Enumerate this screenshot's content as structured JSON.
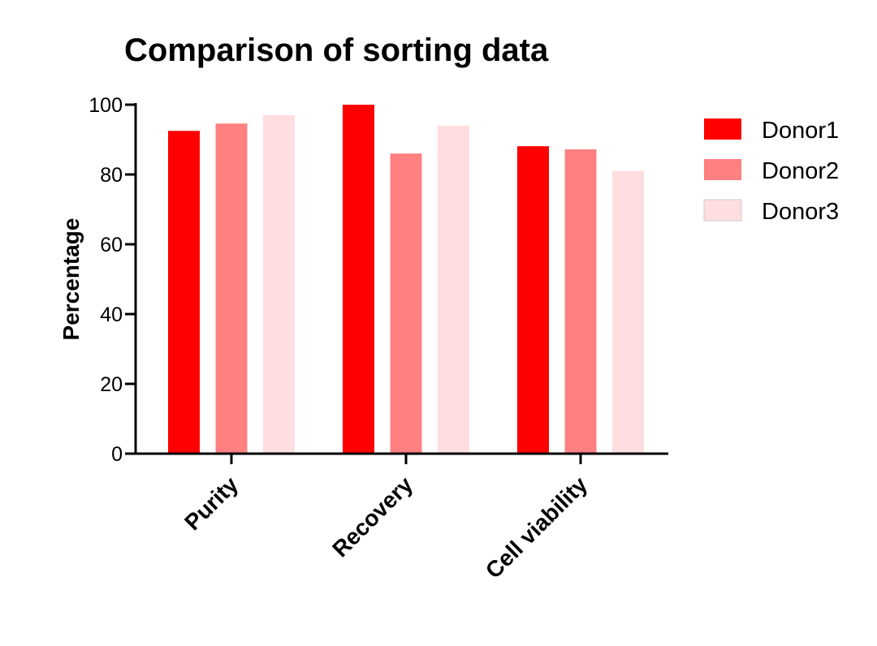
{
  "chart_data": {
    "type": "bar",
    "title": "Comparison of sorting data",
    "xlabel": "",
    "ylabel": "Percentage",
    "ylim": [
      0,
      100
    ],
    "yticks": [
      0,
      20,
      40,
      60,
      80,
      100
    ],
    "categories": [
      "Purity",
      "Recovery",
      "Cell viability"
    ],
    "series": [
      {
        "name": "Donor1",
        "color": "#FF0000",
        "values": [
          92.5,
          100,
          88.1
        ]
      },
      {
        "name": "Donor2",
        "color": "#FF8080",
        "values": [
          94.6,
          86.0,
          87.2
        ]
      },
      {
        "name": "Donor3",
        "color": "#FFDDE0",
        "values": [
          97.0,
          94.0,
          81.0
        ]
      }
    ],
    "grid": false,
    "legend_position": "right"
  }
}
